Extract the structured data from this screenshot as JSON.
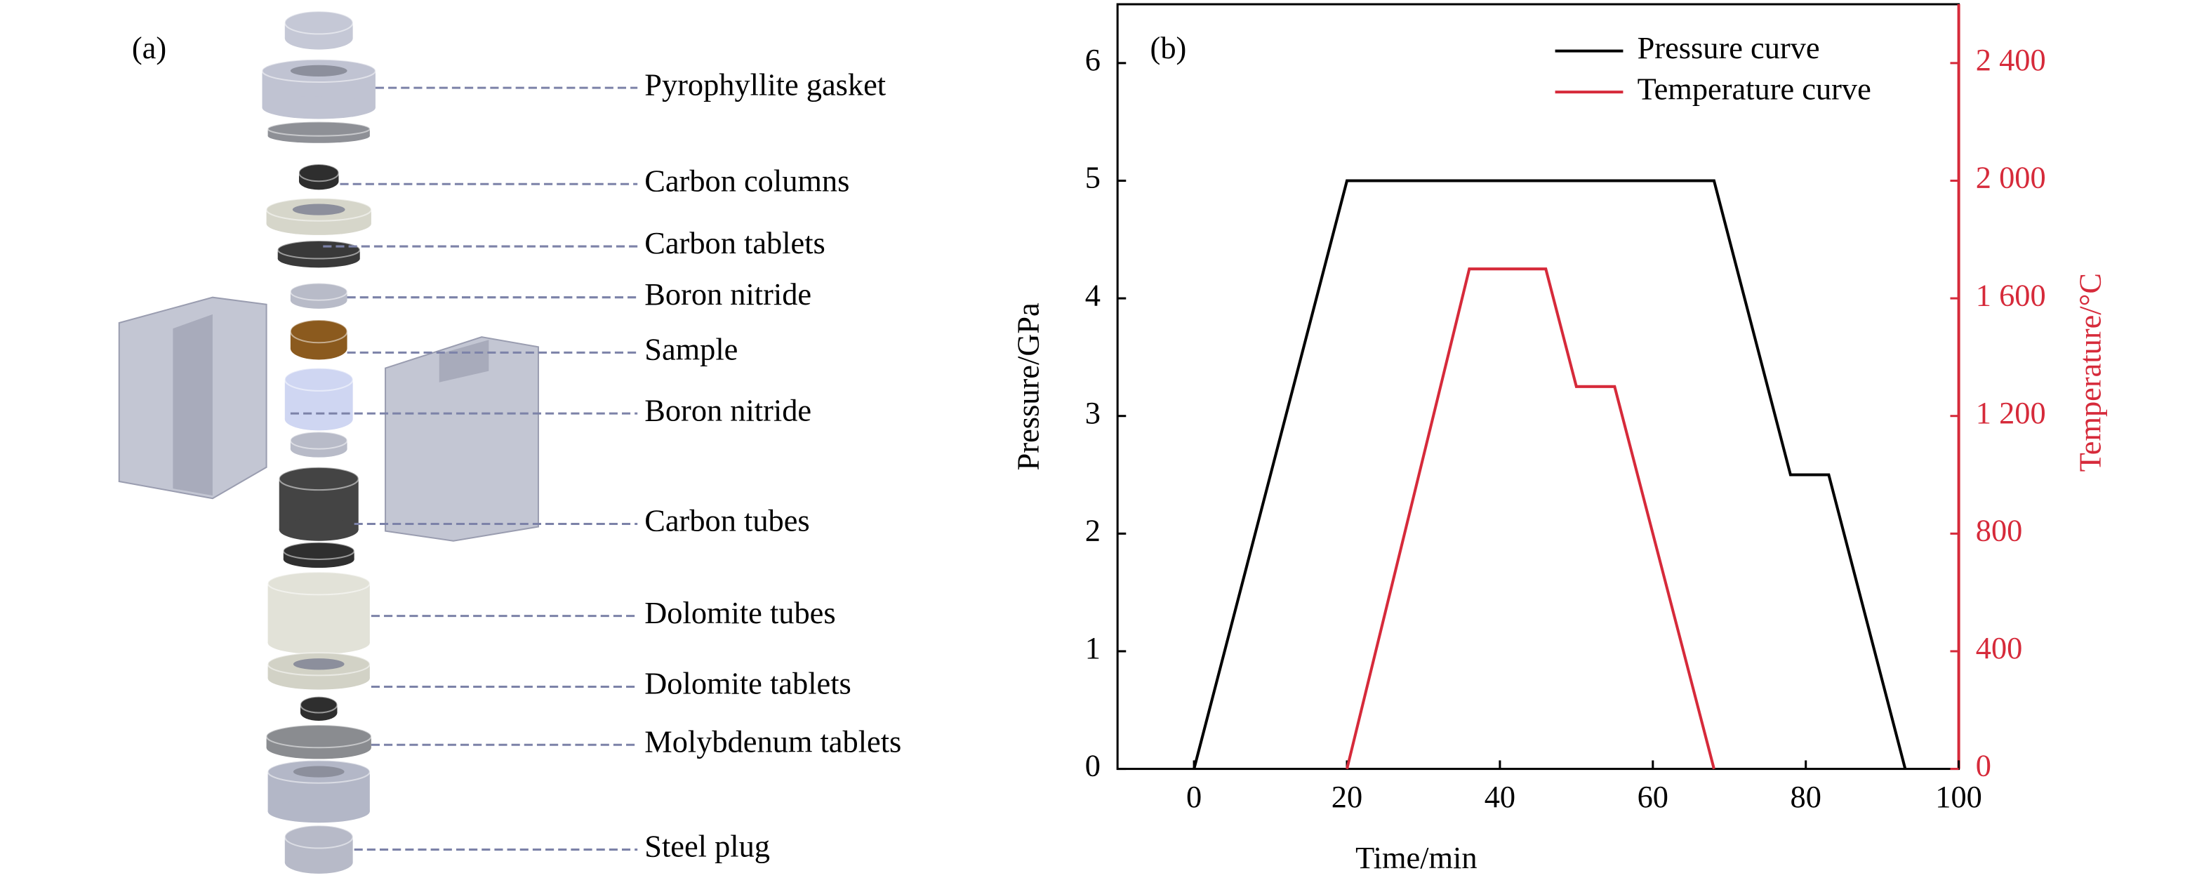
{
  "diagram": {
    "panel_label": "(a)",
    "labels": [
      "Pyrophyllite gasket",
      "Carbon columns",
      "Carbon tablets",
      "Boron nitride",
      "Sample",
      "Boron nitride",
      "Carbon tubes",
      "Dolomite tubes",
      "Dolomite tablets",
      "Molybdenum tablets",
      "Steel plug"
    ]
  },
  "chart_data": {
    "type": "line",
    "panel_label": "(b)",
    "x_label": "Time/min",
    "y_label": "Pressure/GPa",
    "y2_label": "Temperature/°C",
    "xlim": [
      -10,
      100
    ],
    "xticks": [
      0,
      20,
      40,
      60,
      80,
      100
    ],
    "ylim": [
      0,
      6.5
    ],
    "yticks": [
      0,
      1,
      2,
      3,
      4,
      5,
      6
    ],
    "y2lim": [
      0,
      2600
    ],
    "y2ticks": [
      0,
      400,
      800,
      {
        "value": 1200,
        "label": "1 200"
      },
      {
        "value": 1600,
        "label": "1 600"
      },
      {
        "value": 2000,
        "label": "2 000"
      },
      {
        "value": 2400,
        "label": "2 400"
      }
    ],
    "y2_color": "#d62a3a",
    "legend": "upper right",
    "series": [
      {
        "name": "Pressure curve",
        "color": "#000000",
        "x": [
          0,
          20,
          68,
          78,
          83,
          93
        ],
        "values": [
          0,
          5,
          5,
          2.5,
          2.5,
          0
        ]
      },
      {
        "name": "Temperature curve",
        "color": "#d62a3a",
        "axis": "y2",
        "x": [
          20,
          36,
          46,
          50,
          55,
          68
        ],
        "values": [
          0,
          1700,
          1700,
          1300,
          1300,
          0
        ]
      }
    ]
  }
}
